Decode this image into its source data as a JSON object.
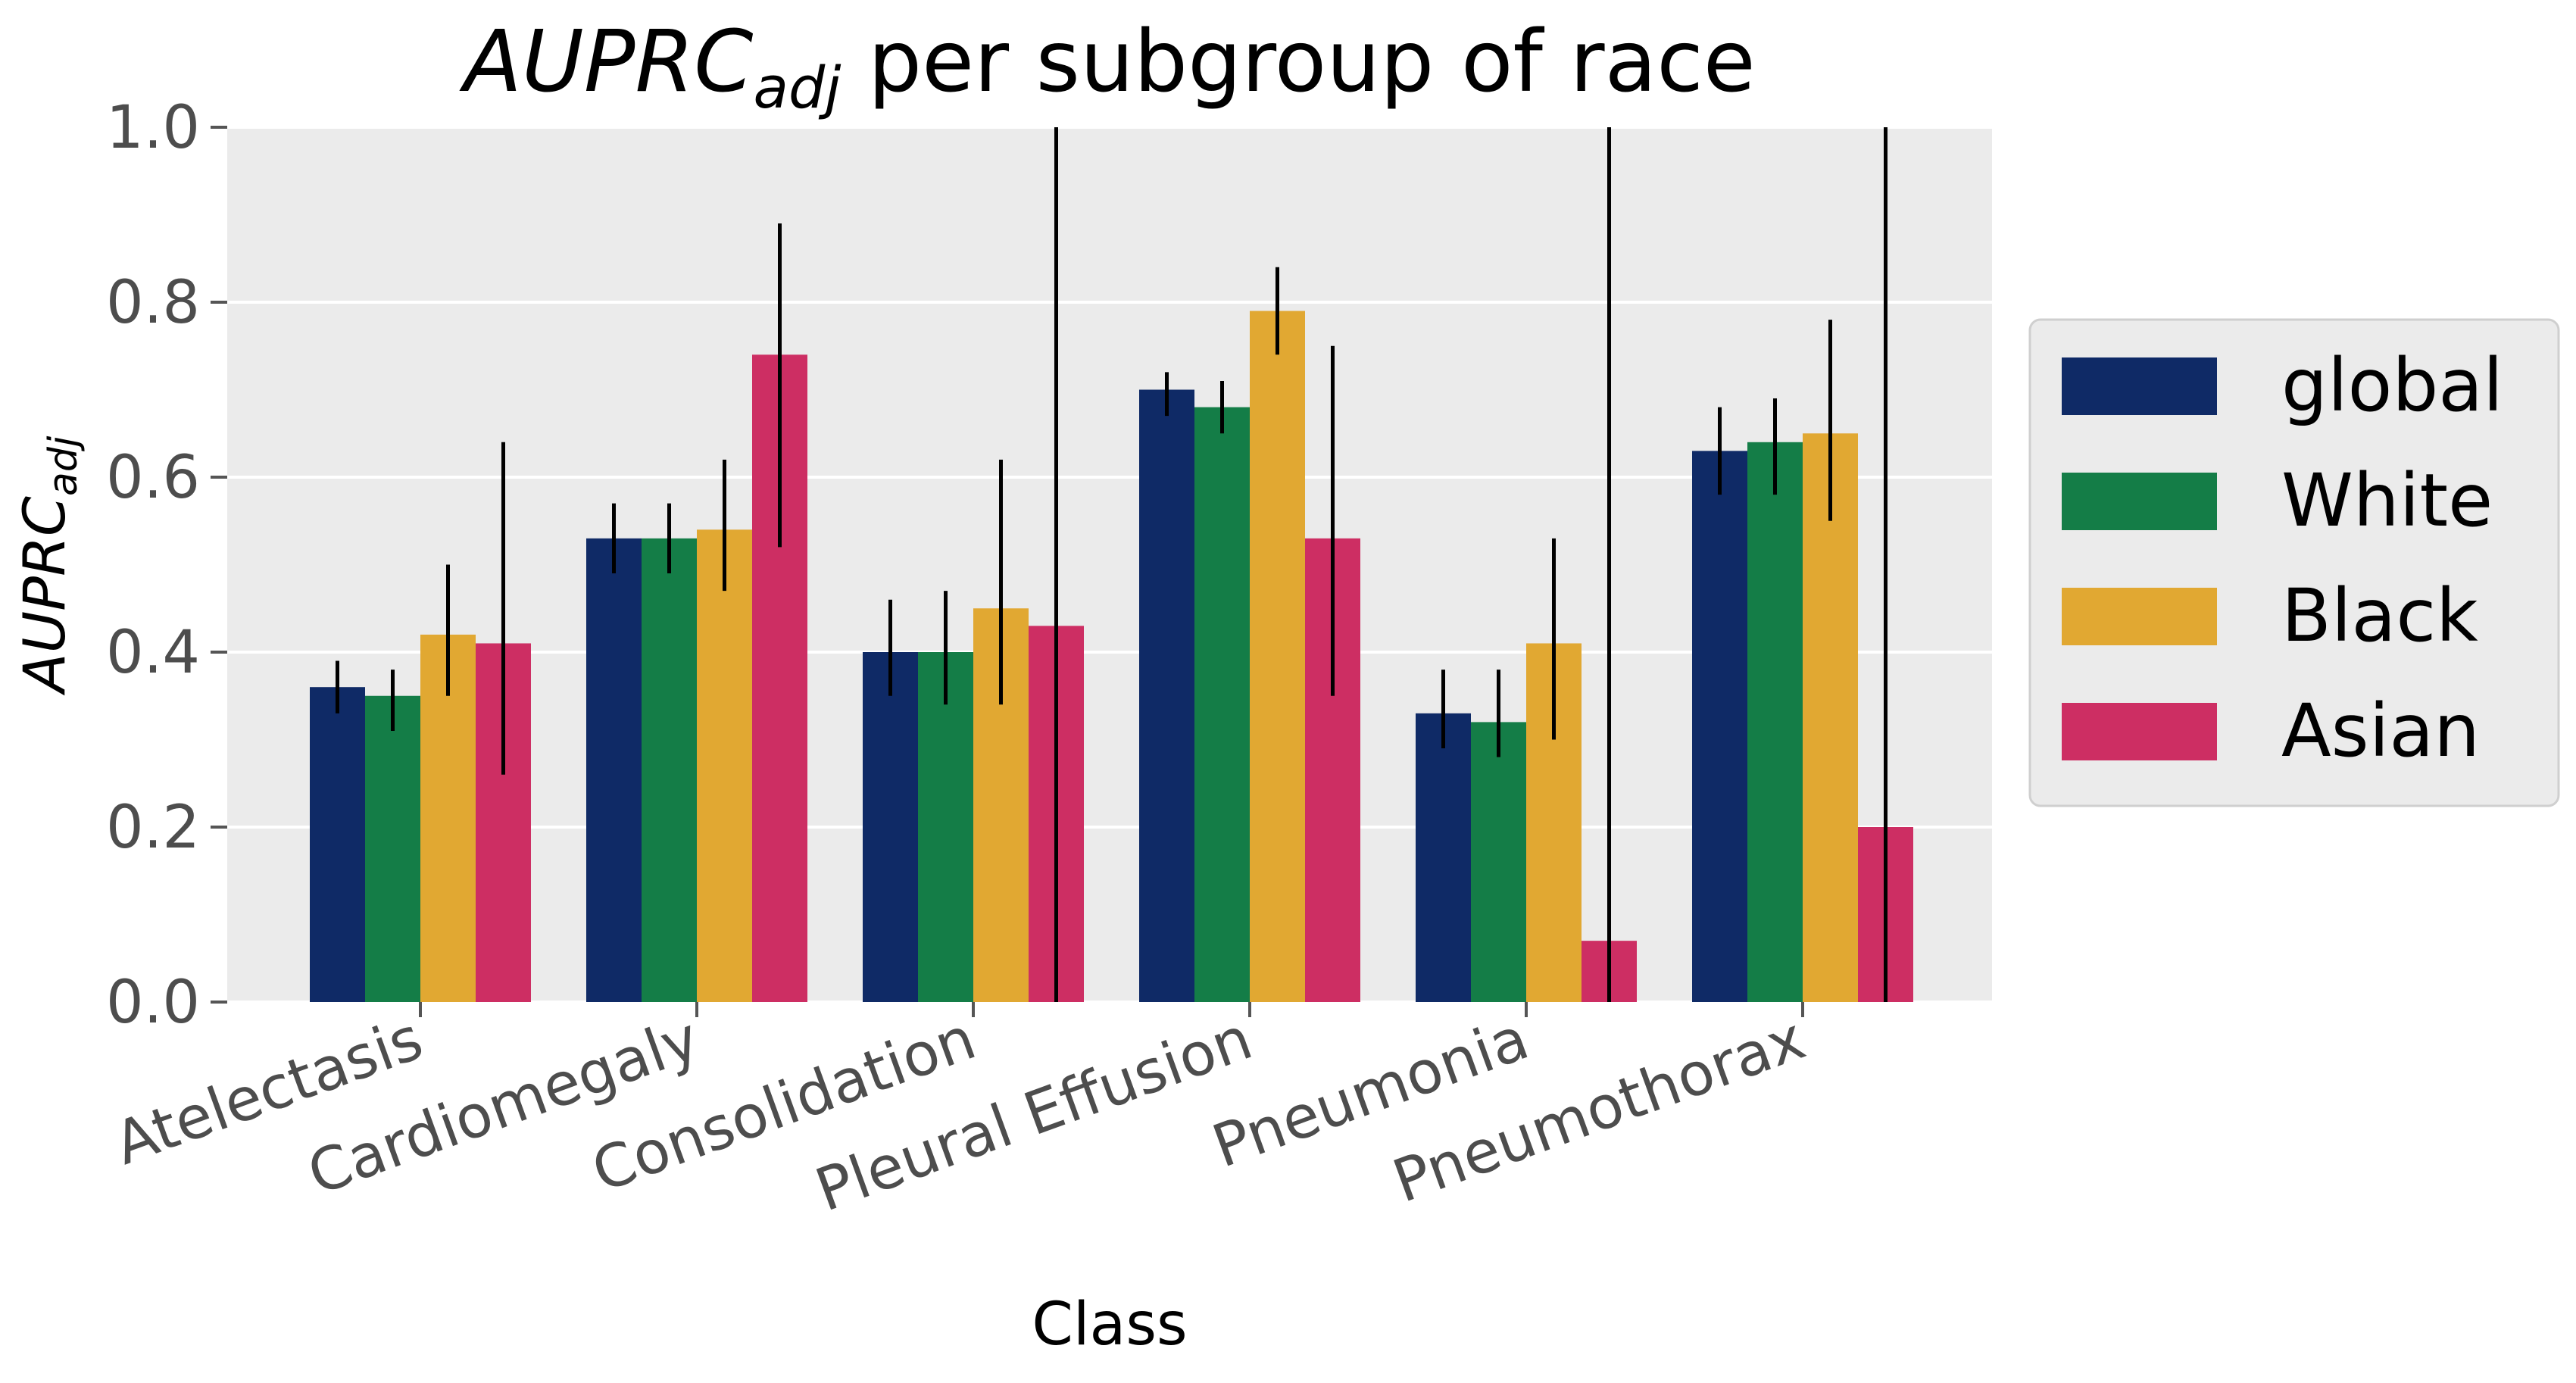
{
  "chart_data": {
    "type": "bar",
    "title_main": "AUPRC",
    "title_sub": "adj",
    "title_rest": " per subgroup of race",
    "xlabel": "Class",
    "ylabel_main": "AUPRC",
    "ylabel_sub": "adj",
    "ylim": [
      0,
      1.0
    ],
    "yticks": [
      "0.0",
      "0.2",
      "0.4",
      "0.6",
      "0.8",
      "1.0"
    ],
    "grid": true,
    "legend_position": "right",
    "categories": [
      "Atelectasis",
      "Cardiomegaly",
      "Consolidation",
      "Pleural Effusion",
      "Pneumonia",
      "Pneumothorax"
    ],
    "series": [
      {
        "name": "global",
        "color": "#0f2a66",
        "values": [
          0.36,
          0.53,
          0.4,
          0.7,
          0.33,
          0.63
        ],
        "err_low": [
          0.33,
          0.49,
          0.35,
          0.67,
          0.29,
          0.58
        ],
        "err_high": [
          0.39,
          0.57,
          0.46,
          0.72,
          0.38,
          0.68
        ]
      },
      {
        "name": "White",
        "color": "#147d47",
        "values": [
          0.35,
          0.53,
          0.4,
          0.68,
          0.32,
          0.64
        ],
        "err_low": [
          0.31,
          0.49,
          0.34,
          0.65,
          0.28,
          0.58
        ],
        "err_high": [
          0.38,
          0.57,
          0.47,
          0.71,
          0.38,
          0.69
        ]
      },
      {
        "name": "Black",
        "color": "#e1a832",
        "values": [
          0.42,
          0.54,
          0.45,
          0.79,
          0.41,
          0.65
        ],
        "err_low": [
          0.35,
          0.47,
          0.34,
          0.74,
          0.3,
          0.55
        ],
        "err_high": [
          0.5,
          0.62,
          0.62,
          0.84,
          0.53,
          0.78
        ]
      },
      {
        "name": "Asian",
        "color": "#cd2e63",
        "values": [
          0.41,
          0.74,
          0.43,
          0.53,
          0.07,
          0.2
        ],
        "err_low": [
          0.26,
          0.52,
          0.0,
          0.35,
          0.0,
          0.0
        ],
        "err_high": [
          0.64,
          0.89,
          1.0,
          0.75,
          1.0,
          1.0
        ]
      }
    ]
  }
}
